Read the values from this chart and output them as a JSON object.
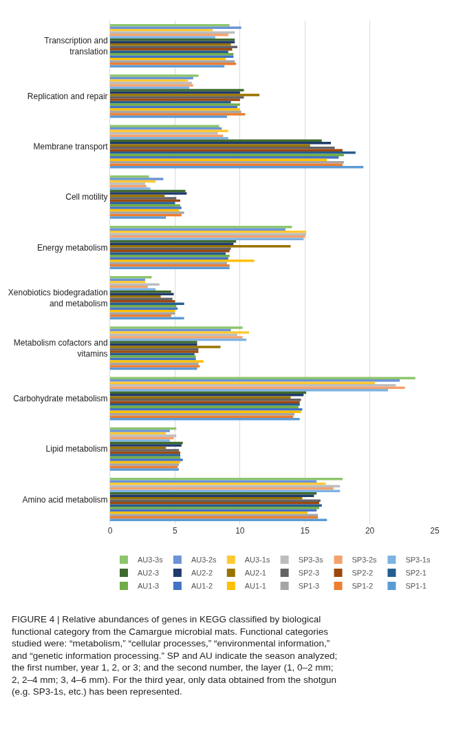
{
  "chart_data": {
    "type": "bar",
    "orientation": "horizontal",
    "categories": [
      "Transcription and translation",
      "Replication and repair",
      "Membrane transport",
      "Cell motility",
      "Energy metabolism",
      "Xenobiotics biodegradation and metabolism",
      "Metabolism cofactors and vitamins",
      "Carbohydrate metabolism",
      "Lipid metabolism",
      "Amino acid metabolism"
    ],
    "series": [
      {
        "name": "AU3-3s",
        "color": "#8dc56c",
        "values": [
          9.2,
          6.8,
          8.4,
          3.0,
          14.0,
          3.2,
          10.2,
          23.5,
          5.1,
          17.9
        ]
      },
      {
        "name": "AU3-2s",
        "color": "#6b93d6",
        "values": [
          10.1,
          6.4,
          8.6,
          4.1,
          13.5,
          2.7,
          9.3,
          22.3,
          4.6,
          15.9
        ]
      },
      {
        "name": "AU3-1s",
        "color": "#ffc832",
        "values": [
          7.9,
          6.0,
          9.1,
          3.5,
          15.1,
          2.7,
          10.7,
          20.4,
          4.3,
          16.6
        ]
      },
      {
        "name": "SP3-3s",
        "color": "#bdbdbd",
        "values": [
          9.6,
          6.3,
          8.3,
          2.7,
          15.1,
          3.8,
          9.8,
          22.0,
          5.1,
          17.7
        ]
      },
      {
        "name": "SP3-2s",
        "color": "#f4a16d",
        "values": [
          9.1,
          6.4,
          8.7,
          2.8,
          15.0,
          2.9,
          10.2,
          22.7,
          4.9,
          17.2
        ]
      },
      {
        "name": "SP3-1s",
        "color": "#7eb3e3",
        "values": [
          8.1,
          6.1,
          9.1,
          3.1,
          14.9,
          3.5,
          10.5,
          21.4,
          4.6,
          17.7
        ]
      },
      {
        "name": "AU2-3",
        "color": "#3e6a2e",
        "values": [
          9.6,
          10.3,
          16.3,
          5.8,
          9.7,
          4.7,
          6.7,
          15.1,
          5.6,
          15.9
        ]
      },
      {
        "name": "AU2-2",
        "color": "#203a6b",
        "values": [
          9.6,
          10.0,
          17.0,
          5.9,
          9.5,
          4.9,
          6.7,
          14.9,
          5.5,
          15.7
        ]
      },
      {
        "name": "AU2-1",
        "color": "#997300",
        "values": [
          9.3,
          11.5,
          15.4,
          4.2,
          13.9,
          3.9,
          8.5,
          13.9,
          4.3,
          14.8
        ]
      },
      {
        "name": "SP2-3",
        "color": "#636363",
        "values": [
          9.8,
          10.3,
          17.3,
          5.1,
          9.3,
          4.8,
          6.8,
          14.7,
          5.3,
          16.2
        ]
      },
      {
        "name": "SP2-2",
        "color": "#9e480e",
        "values": [
          9.4,
          10.0,
          17.9,
          5.4,
          9.2,
          5.0,
          6.8,
          14.6,
          5.4,
          16.1
        ]
      },
      {
        "name": "SP2-1",
        "color": "#255e91",
        "values": [
          9.1,
          9.3,
          18.9,
          5.0,
          8.9,
          5.7,
          6.5,
          14.6,
          5.4,
          16.3
        ]
      },
      {
        "name": "AU1-3",
        "color": "#70ad47",
        "values": [
          9.5,
          10.0,
          18.0,
          5.4,
          9.2,
          5.1,
          6.6,
          14.5,
          5.4,
          16.1
        ]
      },
      {
        "name": "AU1-2",
        "color": "#4472c4",
        "values": [
          9.5,
          9.8,
          17.6,
          5.5,
          9.1,
          5.2,
          6.6,
          14.8,
          5.6,
          15.9
        ]
      },
      {
        "name": "AU1-1",
        "color": "#ffc000",
        "values": [
          8.9,
          10.0,
          16.7,
          5.3,
          11.1,
          5.0,
          7.2,
          14.7,
          5.4,
          15.2
        ]
      },
      {
        "name": "SP1-3",
        "color": "#a5a5a5",
        "values": [
          9.6,
          10.1,
          18.0,
          5.7,
          9.0,
          5.0,
          6.8,
          14.2,
          5.3,
          16.0
        ]
      },
      {
        "name": "SP1-2",
        "color": "#ed7d31",
        "values": [
          9.7,
          10.4,
          17.9,
          5.5,
          9.2,
          4.7,
          6.9,
          14.1,
          5.2,
          16.0
        ]
      },
      {
        "name": "SP1-1",
        "color": "#5b9bd5",
        "values": [
          8.8,
          9.0,
          19.5,
          4.3,
          9.2,
          5.7,
          6.7,
          14.6,
          5.3,
          16.7
        ]
      }
    ],
    "xlim": [
      0,
      25
    ],
    "xticks": [
      0,
      5,
      10,
      15,
      20,
      25
    ],
    "grid": "x",
    "legend": "bottom",
    "annotations": [
      "FIGURE 4 | Relative abundances of genes in KEGG classified by biological functional category from the Camargue microbial mats. Functional categories studied were: “metabolism,” “cellular processes,” “environmental information,” and “genetic information processing.” SP and AU indicate the season analyzed; the first number, year 1, 2, or 3; and the second number, the layer (1, 0–2 mm; 2, 2–4 mm; 3, 4–6 mm). For the third year, only data obtained from the shotgun (e.g. SP3-1s, etc.) has been represented."
    ]
  }
}
